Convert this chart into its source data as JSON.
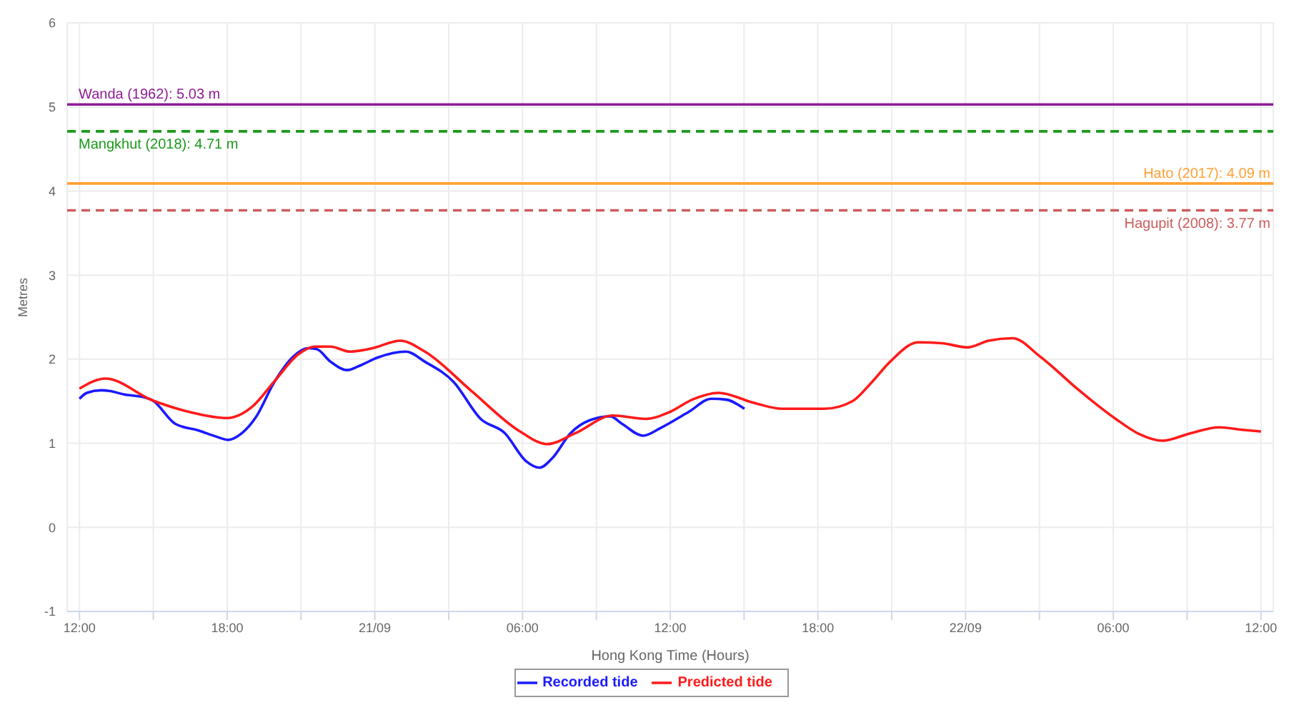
{
  "chart_data": {
    "type": "line",
    "xlabel": "Hong Kong Time (Hours)",
    "ylabel": "Metres",
    "xlim": [
      "--09-20T11:30",
      "--09-22T12:30"
    ],
    "ylim": [
      -1,
      6
    ],
    "yticks": [
      -1,
      0,
      1,
      2,
      3,
      4,
      5,
      6
    ],
    "xticks": [
      {
        "value": "--09-20T12:00",
        "label": "12:00"
      },
      {
        "value": "--09-20T15:00",
        "label": null
      },
      {
        "value": "--09-20T18:00",
        "label": "18:00"
      },
      {
        "value": "--09-20T21:00",
        "label": null
      },
      {
        "value": "--09-21T00:00",
        "label": "21/09"
      },
      {
        "value": "--09-21T03:00",
        "label": null
      },
      {
        "value": "--09-21T06:00",
        "label": "06:00"
      },
      {
        "value": "--09-21T09:00",
        "label": null
      },
      {
        "value": "--09-21T12:00",
        "label": "12:00"
      },
      {
        "value": "--09-21T15:00",
        "label": null
      },
      {
        "value": "--09-21T18:00",
        "label": "18:00"
      },
      {
        "value": "--09-21T21:00",
        "label": null
      },
      {
        "value": "--09-22T00:00",
        "label": "22/09"
      },
      {
        "value": "--09-22T03:00",
        "label": null
      },
      {
        "value": "--09-22T06:00",
        "label": "06:00"
      },
      {
        "value": "--09-22T09:00",
        "label": null
      },
      {
        "value": "--09-22T12:00",
        "label": "12:00"
      }
    ],
    "grid": true,
    "legend": "bottom",
    "marker": "none",
    "series": [
      {
        "name": "Recorded tide",
        "color": "#1a1aff",
        "x": [
          "--09-20T12:00",
          "--09-20T12:18",
          "--09-20T12:52",
          "--09-20T13:15",
          "--09-20T13:49",
          "--09-20T14:35",
          "--09-20T14:58",
          "--09-20T15:54",
          "--09-20T16:52",
          "--09-20T17:33",
          "--09-20T18:02",
          "--09-20T18:36",
          "--09-20T19:10",
          "--09-20T19:54",
          "--09-20T20:41",
          "--09-20T21:16",
          "--09-20T21:38",
          "--09-20T22:12",
          "--09-20T22:53",
          "--09-20T23:22",
          "--09-21T00:07",
          "--09-21T01:16",
          "--09-21T02:02",
          "--09-21T03:12",
          "--09-21T04:18",
          "--09-21T05:17",
          "--09-21T06:08",
          "--09-21T06:42",
          "--09-21T07:12",
          "--09-21T07:57",
          "--09-21T08:42",
          "--09-21T09:34",
          "--09-21T10:03",
          "--09-21T10:54",
          "--09-21T11:36",
          "--09-21T12:44",
          "--09-21T13:41",
          "--09-21T14:15",
          "--09-21T15:01"
        ],
        "values": [
          1.53,
          1.6,
          1.63,
          1.62,
          1.58,
          1.55,
          1.51,
          1.23,
          1.15,
          1.08,
          1.04,
          1.12,
          1.31,
          1.72,
          2.03,
          2.13,
          2.12,
          1.97,
          1.87,
          1.92,
          2.02,
          2.09,
          1.97,
          1.73,
          1.29,
          1.12,
          0.79,
          0.71,
          0.82,
          1.12,
          1.27,
          1.32,
          1.23,
          1.09,
          1.18,
          1.37,
          1.53,
          1.52,
          1.41
        ]
      },
      {
        "name": "Predicted tide",
        "color": "#ff1a1a",
        "x": [
          "--09-20T12:00",
          "--09-20T13:03",
          "--09-20T14:58",
          "--09-20T16:30",
          "--09-20T18:00",
          "--09-20T19:00",
          "--09-20T19:54",
          "--09-20T20:54",
          "--09-20T21:33",
          "--09-20T22:12",
          "--09-20T22:59",
          "--09-20T23:54",
          "--09-21T01:02",
          "--09-21T02:02",
          "--09-21T03:56",
          "--09-21T05:51",
          "--09-21T07:00",
          "--09-21T08:09",
          "--09-21T09:40",
          "--09-21T11:00",
          "--09-21T11:58",
          "--09-21T12:54",
          "--09-21T13:58",
          "--09-21T15:24",
          "--09-21T16:33",
          "--09-21T18:15",
          "--09-21T19:24",
          "--09-21T20:12",
          "--09-21T20:56",
          "--09-21T22:05",
          "--09-21T23:02",
          "--09-22T00:05",
          "--09-22T00:56",
          "--09-22T01:54",
          "--09-22T03:02",
          "--09-22T04:34",
          "--09-22T06:06",
          "--09-22T07:03",
          "--09-22T08:00",
          "--09-22T09:09",
          "--09-22T10:18",
          "--09-22T11:15",
          "--09-22T12:00"
        ],
        "values": [
          1.65,
          1.77,
          1.51,
          1.37,
          1.3,
          1.43,
          1.73,
          2.06,
          2.15,
          2.15,
          2.09,
          2.13,
          2.22,
          2.09,
          1.62,
          1.15,
          0.99,
          1.12,
          1.33,
          1.29,
          1.37,
          1.52,
          1.6,
          1.48,
          1.41,
          1.41,
          1.5,
          1.73,
          1.97,
          2.2,
          2.19,
          2.14,
          2.22,
          2.25,
          2.03,
          1.64,
          1.29,
          1.11,
          1.03,
          1.12,
          1.19,
          1.16,
          1.14
        ]
      }
    ],
    "ref_lines": [
      {
        "axis": "y",
        "value": 5.03,
        "label": "Wanda (1962): 5.03 m",
        "color": "#8e1c96",
        "line_style": "solid"
      },
      {
        "axis": "y",
        "value": 4.71,
        "label": "Mangkhut (2018): 4.71 m",
        "color": "#1a9a1a",
        "line_style": "dashed"
      },
      {
        "axis": "y",
        "value": 4.09,
        "label": "Hato (2017): 4.09 m",
        "color": "#ffa133",
        "line_style": "solid"
      },
      {
        "axis": "y",
        "value": 3.77,
        "label": "Hagupit (2008): 3.77 m",
        "color": "#cd5c5c",
        "line_style": "dashed"
      }
    ]
  }
}
